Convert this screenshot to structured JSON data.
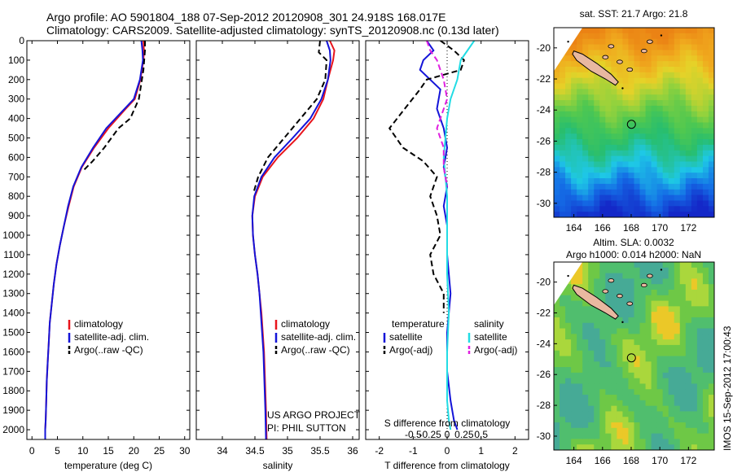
{
  "header": {
    "title_line1": "Argo profile: AO 5901804_188 07-Sep-2012 20120908_301 24.918S 168.017E",
    "title_line2": "Climatology: CARS2009. Satellite-adjusted climatology: synTS_20120908.nc (0.13d later)"
  },
  "side_stamp": "IMOS 15-Sep-2012 17:00:43",
  "colors": {
    "climatology": "#e8141c",
    "satellite": "#1414d8",
    "argo": "#000000",
    "satellite_sal": "#22dce4",
    "argo_sal": "#e020e0",
    "land": "#e8b8a0"
  },
  "chart_data": [
    {
      "type": "line",
      "panel": "temperature",
      "xlabel": "temperature (deg C)",
      "ylabel": "",
      "xlim": [
        -1,
        31
      ],
      "ylim": [
        2050,
        0
      ],
      "xticks": [
        0,
        5,
        10,
        15,
        20,
        25,
        30
      ],
      "yticks": [
        0,
        100,
        200,
        300,
        400,
        500,
        600,
        700,
        800,
        900,
        1000,
        1100,
        1200,
        1300,
        1400,
        1500,
        1600,
        1700,
        1800,
        1900,
        2000
      ],
      "legend": [
        "climatology",
        "satellite-adj. clim.",
        "Argo(..raw -QC)"
      ],
      "series": [
        {
          "name": "climatology",
          "style": "solid",
          "color": "#e8141c",
          "x": [
            21.9,
            22.0,
            21.9,
            21.3,
            20.2,
            18.4,
            15.0,
            12.2,
            9.8,
            8.2,
            7.2,
            6.3,
            5.5,
            4.8,
            4.3,
            3.9,
            3.5,
            3.3,
            3.1,
            2.9,
            2.8,
            2.7,
            2.6,
            2.6
          ],
          "y": [
            0,
            50,
            100,
            200,
            300,
            350,
            450,
            550,
            650,
            750,
            850,
            950,
            1050,
            1150,
            1250,
            1350,
            1450,
            1550,
            1650,
            1750,
            1850,
            1950,
            2000,
            2050
          ]
        },
        {
          "name": "satellite-adj. clim.",
          "style": "solid",
          "color": "#1414d8",
          "x": [
            21.5,
            21.7,
            21.8,
            21.2,
            20.0,
            18.2,
            14.6,
            12.0,
            9.7,
            8.1,
            7.1,
            6.3,
            5.5,
            4.8,
            4.3,
            3.9,
            3.5,
            3.3,
            3.1,
            2.9,
            2.8,
            2.7,
            2.6,
            2.6
          ],
          "y": [
            0,
            50,
            100,
            200,
            300,
            350,
            450,
            550,
            650,
            750,
            850,
            950,
            1050,
            1150,
            1250,
            1350,
            1450,
            1550,
            1650,
            1750,
            1850,
            1950,
            2000,
            2050
          ]
        },
        {
          "name": "Argo(..raw -QC)",
          "style": "dashed",
          "color": "#000000",
          "x": [
            22.2,
            22.2,
            21.9,
            21.0,
            19.3,
            17.0,
            14.2,
            11.9,
            10.0
          ],
          "y": [
            0,
            50,
            150,
            300,
            400,
            450,
            550,
            620,
            670
          ]
        }
      ]
    },
    {
      "type": "line",
      "panel": "salinity",
      "xlabel": "salinity",
      "ylabel": "",
      "xlim": [
        33.6,
        36.1
      ],
      "ylim": [
        2050,
        0
      ],
      "xticks": [
        34,
        34.5,
        35,
        35.5,
        36
      ],
      "legend": [
        "climatology",
        "satellite-adj. clim.",
        "Argo(..raw -QC)"
      ],
      "annotation": [
        "US ARGO PROJECT",
        "PI: PHIL SUTTON"
      ],
      "series": [
        {
          "name": "climatology",
          "style": "solid",
          "color": "#e8141c",
          "x": [
            35.65,
            35.72,
            35.7,
            35.62,
            35.55,
            35.4,
            35.15,
            34.85,
            34.62,
            34.5,
            34.46,
            34.47,
            34.5,
            34.54,
            34.57,
            34.6,
            34.62,
            34.64,
            34.65,
            34.66,
            34.67,
            34.68
          ],
          "y": [
            0,
            50,
            100,
            200,
            300,
            400,
            500,
            600,
            700,
            800,
            900,
            1000,
            1100,
            1200,
            1300,
            1400,
            1500,
            1600,
            1700,
            1800,
            1900,
            2050
          ]
        },
        {
          "name": "satellite-adj. clim.",
          "style": "solid",
          "color": "#1414d8",
          "x": [
            35.6,
            35.65,
            35.66,
            35.62,
            35.52,
            35.35,
            35.08,
            34.8,
            34.6,
            34.49,
            34.46,
            34.47,
            34.5,
            34.54,
            34.57,
            34.59,
            34.61,
            34.63,
            34.64,
            34.65,
            34.66,
            34.67
          ],
          "y": [
            0,
            50,
            100,
            200,
            300,
            400,
            500,
            600,
            700,
            800,
            900,
            1000,
            1100,
            1200,
            1300,
            1400,
            1500,
            1600,
            1700,
            1800,
            1900,
            2050
          ]
        },
        {
          "name": "Argo(..raw -QC)",
          "style": "dashed",
          "color": "#000000",
          "x": [
            35.5,
            35.48,
            35.6,
            35.58,
            35.45,
            35.2,
            34.95,
            34.7,
            34.55,
            34.48
          ],
          "y": [
            0,
            60,
            100,
            200,
            300,
            400,
            500,
            600,
            700,
            780
          ]
        }
      ]
    },
    {
      "type": "line",
      "panel": "difference",
      "xlabel": "T difference from climatology",
      "xlabel_top": "S difference from climatology",
      "ylabel": "",
      "xlim": [
        -2.4,
        2.4
      ],
      "ylim": [
        2050,
        0
      ],
      "xticks": [
        -2,
        -1,
        0,
        1,
        2
      ],
      "xticks_top": [
        "-0.5",
        "-0.25",
        "0",
        "0.25",
        "0.5"
      ],
      "legend_groups": [
        {
          "title": "temperature",
          "entries": [
            "satellite",
            "Argo(-adj)"
          ]
        },
        {
          "title": "salinity",
          "entries": [
            "satellite",
            "Argo(-adj)"
          ]
        }
      ],
      "series": [
        {
          "name": "temperature satellite",
          "style": "solid",
          "color": "#1414d8",
          "x": [
            -0.6,
            -0.4,
            -0.7,
            -0.8,
            -0.2,
            -0.3,
            -0.1,
            0.0,
            -0.1,
            0.0,
            -0.1,
            0.0,
            0.0,
            0.1,
            0.0,
            0.0,
            0.1,
            0.2,
            0.3
          ],
          "y": [
            0,
            50,
            100,
            150,
            250,
            350,
            450,
            550,
            650,
            750,
            850,
            950,
            1100,
            1300,
            1500,
            1700,
            1850,
            1950,
            2000
          ]
        },
        {
          "name": "temperature Argo(-adj)",
          "style": "dashed",
          "color": "#000000",
          "x": [
            -0.2,
            0.2,
            0.5,
            0.4,
            -0.6,
            -0.8,
            -1.7,
            -1.3,
            -0.7,
            -0.3,
            -0.5,
            -0.3,
            -0.2,
            -0.5,
            -0.4,
            -0.1,
            -0.1
          ],
          "y": [
            0,
            50,
            100,
            150,
            200,
            250,
            450,
            550,
            620,
            700,
            800,
            900,
            1000,
            1100,
            1200,
            1300,
            1400
          ]
        },
        {
          "name": "salinity satellite",
          "style": "solid",
          "color": "#22dce4",
          "x": [
            0.8,
            0.6,
            0.4,
            0.3,
            0.1,
            0.0,
            -0.1,
            0.0,
            0.0,
            0.0,
            0.05,
            0.0,
            0.0,
            0.0,
            0.05,
            0.1
          ],
          "y": [
            0,
            50,
            100,
            200,
            300,
            400,
            600,
            800,
            1000,
            1200,
            1400,
            1600,
            1750,
            1850,
            1950,
            2000
          ]
        },
        {
          "name": "salinity Argo(-adj)",
          "style": "dashed",
          "color": "#e020e0",
          "x": [
            -0.6,
            -0.5,
            -0.3,
            -0.1,
            0.0,
            -0.3,
            -0.1,
            -0.1,
            0.0
          ],
          "y": [
            0,
            50,
            100,
            200,
            300,
            450,
            550,
            650,
            750
          ]
        }
      ]
    },
    {
      "type": "heatmap",
      "panel": "sst-map",
      "title": "sat. SST: 21.7 Argo: 21.8",
      "xlim": [
        162.6,
        173.8
      ],
      "ylim": [
        -30.9,
        -18.7
      ],
      "xticks": [
        164,
        166,
        168,
        170,
        172
      ],
      "yticks": [
        -20,
        -22,
        -24,
        -26,
        -28,
        -30
      ],
      "argo_position": {
        "lon": 168.017,
        "lat": -24.918
      }
    },
    {
      "type": "heatmap",
      "panel": "sla-map",
      "title_line1": "Altim. SLA: 0.0032",
      "title_line2": "Argo h1000: 0.014 h2000: NaN",
      "xlim": [
        162.6,
        173.8
      ],
      "ylim": [
        -30.9,
        -18.7
      ],
      "xticks": [
        164,
        166,
        168,
        170,
        172
      ],
      "yticks": [
        -20,
        -22,
        -24,
        -26,
        -28,
        -30
      ],
      "argo_position": {
        "lon": 168.017,
        "lat": -24.918
      }
    }
  ]
}
